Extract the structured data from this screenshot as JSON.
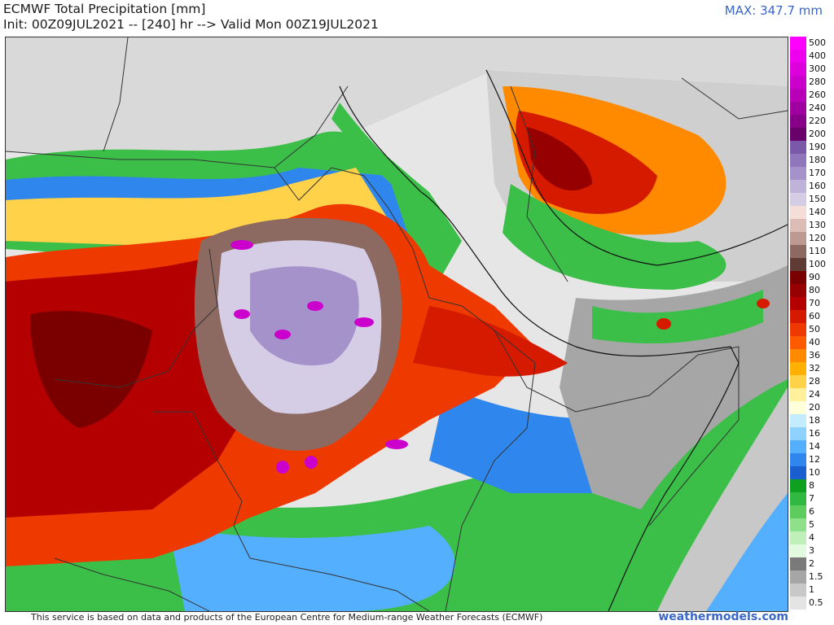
{
  "header": {
    "title_line1": "ECMWF Total Precipitation [mm]",
    "title_line2": "Init: 00Z09JUL2021 -- [240] hr --> Valid Mon 00Z19JUL2021",
    "max_label": "MAX: 347.7 mm"
  },
  "legend": {
    "items": [
      {
        "label": "500",
        "color": "#ff00ff"
      },
      {
        "label": "400",
        "color": "#ee00ee"
      },
      {
        "label": "300",
        "color": "#dd00dd"
      },
      {
        "label": "280",
        "color": "#cc00cc"
      },
      {
        "label": "260",
        "color": "#b800b8"
      },
      {
        "label": "240",
        "color": "#a000a0"
      },
      {
        "label": "220",
        "color": "#880088"
      },
      {
        "label": "200",
        "color": "#6a006a"
      },
      {
        "label": "190",
        "color": "#7a5aa8"
      },
      {
        "label": "180",
        "color": "#9077bb"
      },
      {
        "label": "170",
        "color": "#a592cb"
      },
      {
        "label": "160",
        "color": "#bfb3da"
      },
      {
        "label": "150",
        "color": "#d5cde6"
      },
      {
        "label": "140",
        "color": "#f5ded8"
      },
      {
        "label": "130",
        "color": "#dcbdb5"
      },
      {
        "label": "120",
        "color": "#bd9a91"
      },
      {
        "label": "110",
        "color": "#8c6a62"
      },
      {
        "label": "100",
        "color": "#5e3b34"
      },
      {
        "label": "90",
        "color": "#7a0000"
      },
      {
        "label": "80",
        "color": "#960000"
      },
      {
        "label": "70",
        "color": "#b40000"
      },
      {
        "label": "60",
        "color": "#d61a00"
      },
      {
        "label": "50",
        "color": "#ee3a00"
      },
      {
        "label": "40",
        "color": "#ff5a00"
      },
      {
        "label": "36",
        "color": "#ff8a00"
      },
      {
        "label": "32",
        "color": "#ffb000"
      },
      {
        "label": "28",
        "color": "#ffd24a"
      },
      {
        "label": "24",
        "color": "#fff09a"
      },
      {
        "label": "20",
        "color": "#ffffd9"
      },
      {
        "label": "18",
        "color": "#c4ecff"
      },
      {
        "label": "16",
        "color": "#8fd2ff"
      },
      {
        "label": "14",
        "color": "#55afff"
      },
      {
        "label": "12",
        "color": "#2f87ee"
      },
      {
        "label": "10",
        "color": "#1a5fd0"
      },
      {
        "label": "8",
        "color": "#0ea01e"
      },
      {
        "label": "7",
        "color": "#30b840"
      },
      {
        "label": "6",
        "color": "#5ccc5c"
      },
      {
        "label": "5",
        "color": "#8ee08a"
      },
      {
        "label": "4",
        "color": "#bff0b9"
      },
      {
        "label": "3",
        "color": "#e2fadf"
      },
      {
        "label": "2",
        "color": "#7a7a7a"
      },
      {
        "label": "1.5",
        "color": "#a6a6a6"
      },
      {
        "label": "1",
        "color": "#c8c8c8"
      },
      {
        "label": "0.5",
        "color": "#e4e4e4"
      }
    ]
  },
  "footer": {
    "attribution": "This service is based on data and products of the European Centre for Medium-range Weather Forecasts (ECMWF)",
    "site": "weathermodels.com"
  }
}
